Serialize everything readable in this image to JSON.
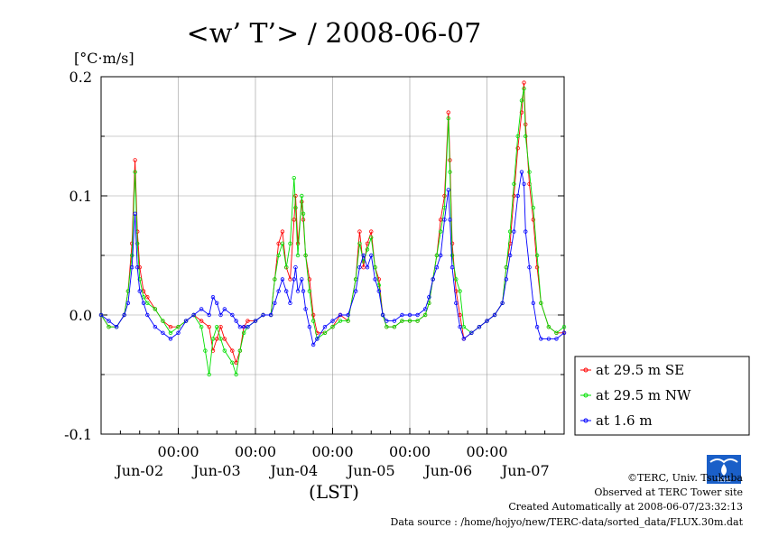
{
  "chart_data": {
    "type": "line",
    "title": "<w’ T’> / 2008-06-07",
    "unit_label": "[°C·m/s]",
    "xlabel": "(LST)",
    "ylim": [
      -0.1,
      0.2
    ],
    "yticks": [
      "-0.1",
      "0.0",
      "0.1",
      "0.2"
    ],
    "yticks_values": [
      -0.1,
      0.0,
      0.1,
      0.2
    ],
    "xlim_days": [
      1.0,
      7.0
    ],
    "time_ticks": [
      "00:00",
      "00:00",
      "00:00",
      "00:00",
      "00:00"
    ],
    "time_ticks_days": [
      2,
      3,
      4,
      5,
      6
    ],
    "date_labels": [
      "Jun-02",
      "Jun-03",
      "Jun-04",
      "Jun-05",
      "Jun-06",
      "Jun-07"
    ],
    "date_labels_days": [
      1.5,
      2.5,
      3.5,
      4.5,
      5.5,
      6.5
    ],
    "grid": true,
    "legend_position": "bottom-right",
    "series": [
      {
        "name": "at 29.5 m SE",
        "color": "#ff0000",
        "points": [
          [
            1.0,
            0.0
          ],
          [
            1.1,
            -0.01
          ],
          [
            1.2,
            -0.01
          ],
          [
            1.3,
            0.0
          ],
          [
            1.35,
            0.02
          ],
          [
            1.4,
            0.06
          ],
          [
            1.44,
            0.13
          ],
          [
            1.47,
            0.07
          ],
          [
            1.5,
            0.04
          ],
          [
            1.55,
            0.02
          ],
          [
            1.6,
            0.015
          ],
          [
            1.7,
            0.005
          ],
          [
            1.8,
            -0.005
          ],
          [
            1.9,
            -0.01
          ],
          [
            2.0,
            -0.01
          ],
          [
            2.1,
            -0.005
          ],
          [
            2.2,
            0.0
          ],
          [
            2.3,
            -0.005
          ],
          [
            2.4,
            -0.01
          ],
          [
            2.45,
            -0.03
          ],
          [
            2.5,
            -0.02
          ],
          [
            2.55,
            -0.01
          ],
          [
            2.6,
            -0.02
          ],
          [
            2.7,
            -0.03
          ],
          [
            2.75,
            -0.04
          ],
          [
            2.8,
            -0.03
          ],
          [
            2.85,
            -0.01
          ],
          [
            2.9,
            -0.005
          ],
          [
            3.0,
            -0.005
          ],
          [
            3.1,
            0.0
          ],
          [
            3.2,
            0.0
          ],
          [
            3.25,
            0.03
          ],
          [
            3.3,
            0.06
          ],
          [
            3.35,
            0.07
          ],
          [
            3.4,
            0.04
          ],
          [
            3.45,
            0.03
          ],
          [
            3.5,
            0.08
          ],
          [
            3.52,
            0.1
          ],
          [
            3.55,
            0.06
          ],
          [
            3.6,
            0.095
          ],
          [
            3.62,
            0.08
          ],
          [
            3.65,
            0.05
          ],
          [
            3.7,
            0.03
          ],
          [
            3.75,
            0.0
          ],
          [
            3.8,
            -0.015
          ],
          [
            3.9,
            -0.015
          ],
          [
            4.0,
            -0.01
          ],
          [
            4.1,
            0.0
          ],
          [
            4.2,
            -0.005
          ],
          [
            4.3,
            0.03
          ],
          [
            4.35,
            0.07
          ],
          [
            4.4,
            0.04
          ],
          [
            4.45,
            0.06
          ],
          [
            4.5,
            0.07
          ],
          [
            4.55,
            0.04
          ],
          [
            4.6,
            0.03
          ],
          [
            4.65,
            0.0
          ],
          [
            4.7,
            -0.01
          ],
          [
            4.8,
            -0.01
          ],
          [
            4.9,
            -0.005
          ],
          [
            5.0,
            -0.005
          ],
          [
            5.1,
            -0.005
          ],
          [
            5.2,
            0.0
          ],
          [
            5.25,
            0.01
          ],
          [
            5.3,
            0.03
          ],
          [
            5.35,
            0.05
          ],
          [
            5.4,
            0.08
          ],
          [
            5.45,
            0.1
          ],
          [
            5.5,
            0.17
          ],
          [
            5.52,
            0.13
          ],
          [
            5.55,
            0.06
          ],
          [
            5.6,
            0.02
          ],
          [
            5.65,
            0.0
          ],
          [
            5.7,
            -0.02
          ],
          [
            5.8,
            -0.015
          ],
          [
            5.9,
            -0.01
          ],
          [
            6.0,
            -0.005
          ],
          [
            6.1,
            0.0
          ],
          [
            6.2,
            0.01
          ],
          [
            6.25,
            0.04
          ],
          [
            6.3,
            0.06
          ],
          [
            6.35,
            0.1
          ],
          [
            6.4,
            0.14
          ],
          [
            6.45,
            0.17
          ],
          [
            6.48,
            0.195
          ],
          [
            6.5,
            0.16
          ],
          [
            6.55,
            0.11
          ],
          [
            6.6,
            0.08
          ],
          [
            6.65,
            0.04
          ],
          [
            6.7,
            0.01
          ],
          [
            6.8,
            -0.01
          ],
          [
            6.9,
            -0.015
          ],
          [
            7.0,
            -0.015
          ]
        ]
      },
      {
        "name": "at 29.5 m NW",
        "color": "#00e000",
        "points": [
          [
            1.0,
            0.0
          ],
          [
            1.1,
            -0.01
          ],
          [
            1.2,
            -0.01
          ],
          [
            1.3,
            0.0
          ],
          [
            1.35,
            0.02
          ],
          [
            1.4,
            0.05
          ],
          [
            1.44,
            0.12
          ],
          [
            1.47,
            0.06
          ],
          [
            1.5,
            0.03
          ],
          [
            1.55,
            0.015
          ],
          [
            1.6,
            0.01
          ],
          [
            1.7,
            0.005
          ],
          [
            1.8,
            -0.005
          ],
          [
            1.9,
            -0.015
          ],
          [
            2.0,
            -0.01
          ],
          [
            2.1,
            -0.005
          ],
          [
            2.2,
            0.0
          ],
          [
            2.3,
            -0.01
          ],
          [
            2.35,
            -0.03
          ],
          [
            2.4,
            -0.05
          ],
          [
            2.45,
            -0.02
          ],
          [
            2.5,
            -0.01
          ],
          [
            2.55,
            -0.02
          ],
          [
            2.6,
            -0.03
          ],
          [
            2.7,
            -0.04
          ],
          [
            2.75,
            -0.05
          ],
          [
            2.8,
            -0.03
          ],
          [
            2.85,
            -0.015
          ],
          [
            2.9,
            -0.01
          ],
          [
            3.0,
            -0.005
          ],
          [
            3.1,
            0.0
          ],
          [
            3.2,
            0.0
          ],
          [
            3.25,
            0.03
          ],
          [
            3.3,
            0.05
          ],
          [
            3.35,
            0.06
          ],
          [
            3.4,
            0.04
          ],
          [
            3.45,
            0.06
          ],
          [
            3.5,
            0.115
          ],
          [
            3.52,
            0.09
          ],
          [
            3.55,
            0.05
          ],
          [
            3.6,
            0.1
          ],
          [
            3.62,
            0.085
          ],
          [
            3.65,
            0.05
          ],
          [
            3.7,
            0.02
          ],
          [
            3.75,
            -0.005
          ],
          [
            3.8,
            -0.02
          ],
          [
            3.9,
            -0.015
          ],
          [
            4.0,
            -0.01
          ],
          [
            4.1,
            -0.005
          ],
          [
            4.2,
            -0.005
          ],
          [
            4.3,
            0.03
          ],
          [
            4.35,
            0.06
          ],
          [
            4.4,
            0.045
          ],
          [
            4.45,
            0.055
          ],
          [
            4.5,
            0.065
          ],
          [
            4.55,
            0.04
          ],
          [
            4.6,
            0.025
          ],
          [
            4.65,
            0.0
          ],
          [
            4.7,
            -0.01
          ],
          [
            4.8,
            -0.01
          ],
          [
            4.9,
            -0.005
          ],
          [
            5.0,
            -0.005
          ],
          [
            5.1,
            -0.005
          ],
          [
            5.2,
            0.0
          ],
          [
            5.25,
            0.01
          ],
          [
            5.3,
            0.03
          ],
          [
            5.35,
            0.05
          ],
          [
            5.4,
            0.07
          ],
          [
            5.45,
            0.09
          ],
          [
            5.5,
            0.165
          ],
          [
            5.52,
            0.12
          ],
          [
            5.55,
            0.05
          ],
          [
            5.6,
            0.03
          ],
          [
            5.65,
            0.02
          ],
          [
            5.7,
            -0.01
          ],
          [
            5.8,
            -0.015
          ],
          [
            5.9,
            -0.01
          ],
          [
            6.0,
            -0.005
          ],
          [
            6.1,
            0.0
          ],
          [
            6.2,
            0.01
          ],
          [
            6.25,
            0.04
          ],
          [
            6.3,
            0.07
          ],
          [
            6.35,
            0.11
          ],
          [
            6.4,
            0.15
          ],
          [
            6.45,
            0.18
          ],
          [
            6.48,
            0.19
          ],
          [
            6.5,
            0.15
          ],
          [
            6.55,
            0.12
          ],
          [
            6.6,
            0.09
          ],
          [
            6.65,
            0.05
          ],
          [
            6.7,
            0.01
          ],
          [
            6.8,
            -0.01
          ],
          [
            6.9,
            -0.015
          ],
          [
            7.0,
            -0.01
          ]
        ]
      },
      {
        "name": "at 1.6 m",
        "color": "#0000ff",
        "points": [
          [
            1.0,
            0.0
          ],
          [
            1.1,
            -0.005
          ],
          [
            1.2,
            -0.01
          ],
          [
            1.3,
            0.0
          ],
          [
            1.35,
            0.01
          ],
          [
            1.4,
            0.04
          ],
          [
            1.44,
            0.085
          ],
          [
            1.47,
            0.04
          ],
          [
            1.5,
            0.02
          ],
          [
            1.55,
            0.01
          ],
          [
            1.6,
            0.0
          ],
          [
            1.7,
            -0.01
          ],
          [
            1.8,
            -0.015
          ],
          [
            1.9,
            -0.02
          ],
          [
            2.0,
            -0.015
          ],
          [
            2.1,
            -0.005
          ],
          [
            2.2,
            0.0
          ],
          [
            2.3,
            0.005
          ],
          [
            2.4,
            0.0
          ],
          [
            2.45,
            0.015
          ],
          [
            2.5,
            0.01
          ],
          [
            2.55,
            0.0
          ],
          [
            2.6,
            0.005
          ],
          [
            2.7,
            0.0
          ],
          [
            2.75,
            -0.005
          ],
          [
            2.8,
            -0.01
          ],
          [
            2.85,
            -0.01
          ],
          [
            2.9,
            -0.01
          ],
          [
            3.0,
            -0.005
          ],
          [
            3.1,
            0.0
          ],
          [
            3.2,
            0.0
          ],
          [
            3.25,
            0.01
          ],
          [
            3.3,
            0.02
          ],
          [
            3.35,
            0.03
          ],
          [
            3.4,
            0.02
          ],
          [
            3.45,
            0.01
          ],
          [
            3.5,
            0.03
          ],
          [
            3.52,
            0.04
          ],
          [
            3.55,
            0.02
          ],
          [
            3.6,
            0.03
          ],
          [
            3.62,
            0.02
          ],
          [
            3.65,
            0.005
          ],
          [
            3.7,
            -0.01
          ],
          [
            3.75,
            -0.025
          ],
          [
            3.8,
            -0.02
          ],
          [
            3.9,
            -0.01
          ],
          [
            4.0,
            -0.005
          ],
          [
            4.1,
            0.0
          ],
          [
            4.2,
            0.0
          ],
          [
            4.3,
            0.02
          ],
          [
            4.35,
            0.04
          ],
          [
            4.4,
            0.05
          ],
          [
            4.45,
            0.04
          ],
          [
            4.5,
            0.05
          ],
          [
            4.55,
            0.03
          ],
          [
            4.6,
            0.02
          ],
          [
            4.65,
            0.0
          ],
          [
            4.7,
            -0.005
          ],
          [
            4.8,
            -0.005
          ],
          [
            4.9,
            0.0
          ],
          [
            5.0,
            0.0
          ],
          [
            5.1,
            0.0
          ],
          [
            5.2,
            0.005
          ],
          [
            5.25,
            0.015
          ],
          [
            5.3,
            0.03
          ],
          [
            5.35,
            0.04
          ],
          [
            5.4,
            0.05
          ],
          [
            5.45,
            0.08
          ],
          [
            5.5,
            0.105
          ],
          [
            5.52,
            0.08
          ],
          [
            5.55,
            0.04
          ],
          [
            5.6,
            0.01
          ],
          [
            5.65,
            -0.01
          ],
          [
            5.7,
            -0.02
          ],
          [
            5.8,
            -0.015
          ],
          [
            5.9,
            -0.01
          ],
          [
            6.0,
            -0.005
          ],
          [
            6.1,
            0.0
          ],
          [
            6.2,
            0.01
          ],
          [
            6.25,
            0.03
          ],
          [
            6.3,
            0.05
          ],
          [
            6.35,
            0.07
          ],
          [
            6.4,
            0.1
          ],
          [
            6.45,
            0.12
          ],
          [
            6.48,
            0.11
          ],
          [
            6.5,
            0.07
          ],
          [
            6.55,
            0.04
          ],
          [
            6.6,
            0.01
          ],
          [
            6.65,
            -0.01
          ],
          [
            6.7,
            -0.02
          ],
          [
            6.8,
            -0.02
          ],
          [
            6.9,
            -0.02
          ],
          [
            7.0,
            -0.015
          ]
        ]
      }
    ]
  },
  "credits": {
    "copyright": "©TERC, Univ. Tsukuba",
    "site": "Observed at TERC Tower site",
    "created": "Created Automatically at 2008-06-07/23:32:13",
    "source": "Data source : /home/hojyo/new/TERC-data/sorted_data/FLUX.30m.dat",
    "logo_text": "TERC"
  }
}
